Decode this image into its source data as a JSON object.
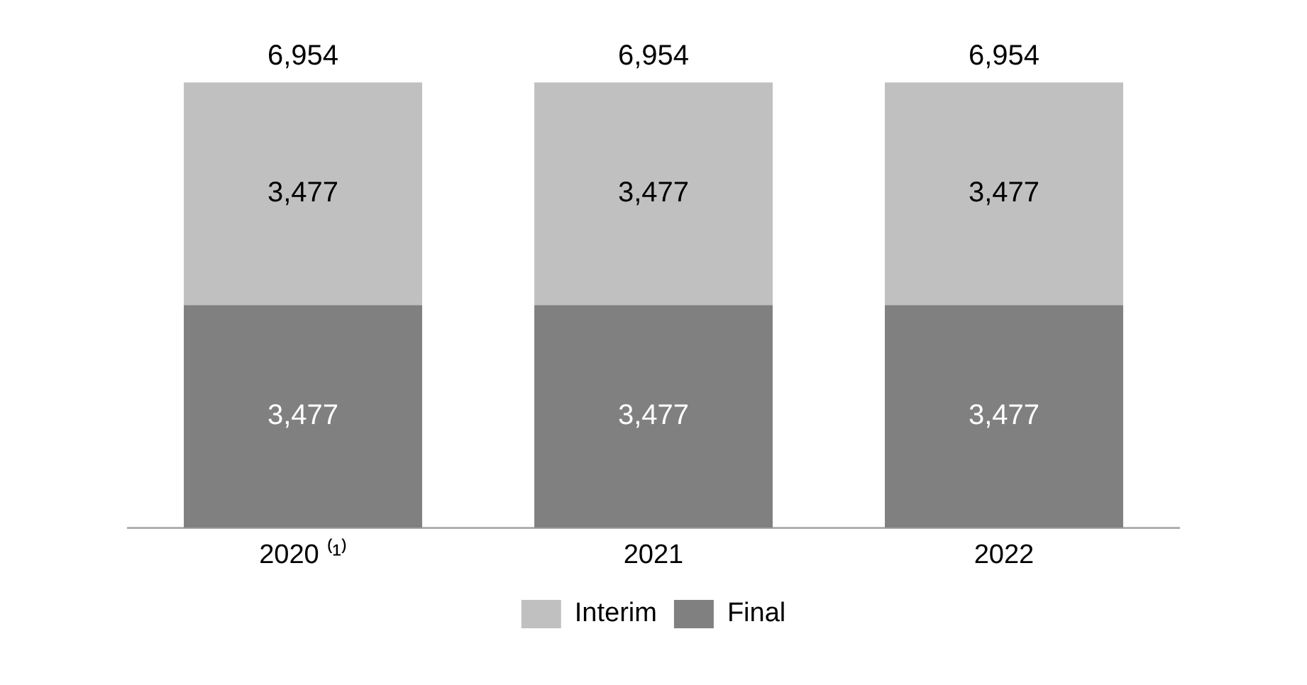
{
  "chart_data": {
    "type": "bar",
    "stacked": true,
    "categories": [
      "2020 ⁽¹⁾",
      "2021",
      "2022"
    ],
    "series": [
      {
        "name": "Final",
        "color": "#808080",
        "values": [
          3477,
          3477,
          3477
        ],
        "value_labels": [
          "3,477",
          "3,477",
          "3,477"
        ]
      },
      {
        "name": "Interim",
        "color": "#c0c0c0",
        "values": [
          3477,
          3477,
          3477
        ],
        "value_labels": [
          "3,477",
          "3,477",
          "3,477"
        ]
      }
    ],
    "totals": [
      "6,954",
      "6,954",
      "6,954"
    ],
    "ylim": [
      0,
      7000
    ],
    "legend": "bottom",
    "grid": false,
    "tick_labels": "x"
  }
}
